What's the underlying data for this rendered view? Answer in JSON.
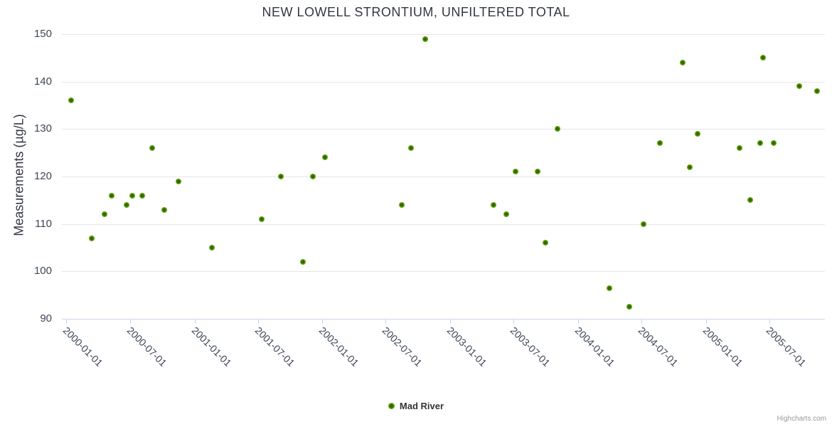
{
  "chart_data": {
    "type": "scatter",
    "title": "NEW LOWELL STRONTIUM, UNFILTERED TOTAL",
    "xlabel": "",
    "ylabel": "Measurements (µg/L)",
    "ylim": [
      90,
      150
    ],
    "yticks": [
      90,
      100,
      110,
      120,
      130,
      140,
      150
    ],
    "xticks": [
      "2000-01-01",
      "2000-07-01",
      "2001-01-01",
      "2001-07-01",
      "2002-01-01",
      "2002-07-01",
      "2003-01-01",
      "2003-07-01",
      "2004-01-01",
      "2004-07-01",
      "2005-01-01",
      "2005-07-01"
    ],
    "x_tick_rotation_deg": 45,
    "grid": "horizontal",
    "legend_position": "bottom-center",
    "colors": {
      "marker_outer": "#84bf30",
      "marker_mid": "#5d9b0b",
      "marker_core": "#2f6604",
      "grid_line": "#e6e6e6",
      "axis_line": "#ccd6eb",
      "title_text": "#333740",
      "axis_text": "#3d4653",
      "credit_text": "#999999"
    },
    "series": [
      {
        "name": "Mad River",
        "points": [
          {
            "date": "2000-01-15",
            "value": 136
          },
          {
            "date": "2000-03-14",
            "value": 107
          },
          {
            "date": "2000-04-20",
            "value": 112
          },
          {
            "date": "2000-05-09",
            "value": 116
          },
          {
            "date": "2000-06-21",
            "value": 114
          },
          {
            "date": "2000-07-07",
            "value": 116
          },
          {
            "date": "2000-08-04",
            "value": 116
          },
          {
            "date": "2000-09-02",
            "value": 126
          },
          {
            "date": "2000-10-07",
            "value": 113
          },
          {
            "date": "2000-11-16",
            "value": 119
          },
          {
            "date": "2001-02-19",
            "value": 105
          },
          {
            "date": "2001-07-11",
            "value": 111
          },
          {
            "date": "2001-09-04",
            "value": 120
          },
          {
            "date": "2001-11-07",
            "value": 102
          },
          {
            "date": "2001-12-05",
            "value": 120
          },
          {
            "date": "2002-01-08",
            "value": 124
          },
          {
            "date": "2002-08-16",
            "value": 114
          },
          {
            "date": "2002-09-11",
            "value": 126
          },
          {
            "date": "2002-10-21",
            "value": 149
          },
          {
            "date": "2003-05-04",
            "value": 114
          },
          {
            "date": "2003-06-10",
            "value": 112
          },
          {
            "date": "2003-07-06",
            "value": 121
          },
          {
            "date": "2003-09-08",
            "value": 121
          },
          {
            "date": "2003-10-01",
            "value": 106
          },
          {
            "date": "2003-11-04",
            "value": 130
          },
          {
            "date": "2004-03-31",
            "value": 96.5
          },
          {
            "date": "2004-05-26",
            "value": 92.5
          },
          {
            "date": "2004-07-06",
            "value": 110
          },
          {
            "date": "2004-08-22",
            "value": 127
          },
          {
            "date": "2004-10-26",
            "value": 144
          },
          {
            "date": "2004-11-15",
            "value": 122
          },
          {
            "date": "2004-12-07",
            "value": 129
          },
          {
            "date": "2005-04-06",
            "value": 126
          },
          {
            "date": "2005-05-07",
            "value": 115
          },
          {
            "date": "2005-06-05",
            "value": 127
          },
          {
            "date": "2005-06-13",
            "value": 145
          },
          {
            "date": "2005-07-13",
            "value": 127
          },
          {
            "date": "2005-09-25",
            "value": 139
          },
          {
            "date": "2005-11-15",
            "value": 138
          }
        ]
      }
    ],
    "credit": "Highcharts.com"
  }
}
